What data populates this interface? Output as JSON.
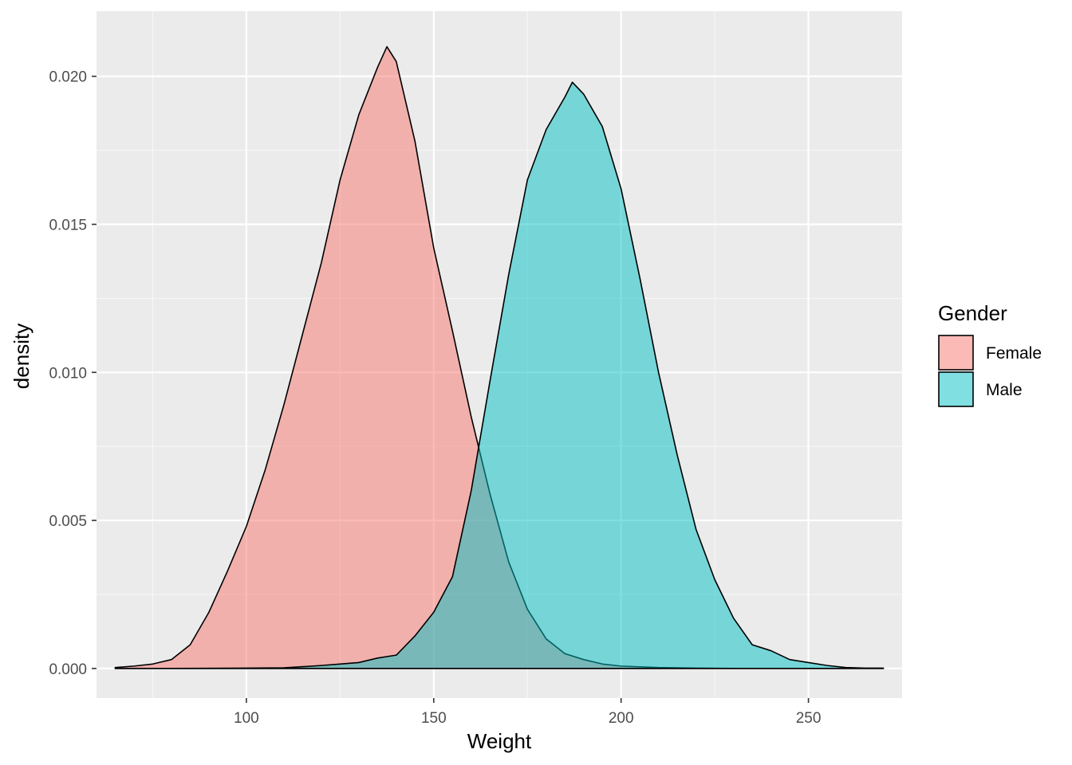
{
  "chart_data": {
    "type": "area",
    "subtype": "density",
    "title": "",
    "xlabel": "Weight",
    "ylabel": "density",
    "xlim": [
      60,
      275
    ],
    "ylim": [
      -0.001,
      0.0222
    ],
    "x_ticks": [
      100,
      150,
      200,
      250
    ],
    "x_tick_labels": [
      "100",
      "150",
      "200",
      "250"
    ],
    "y_ticks": [
      0.0,
      0.005,
      0.01,
      0.015,
      0.02
    ],
    "y_tick_labels": [
      "0.000",
      "0.005",
      "0.010",
      "0.015",
      "0.020"
    ],
    "grid": true,
    "legend": {
      "title": "Gender",
      "position": "right",
      "entries": [
        "Female",
        "Male"
      ]
    },
    "series": [
      {
        "name": "Female",
        "color": "#F8766D",
        "opacity": 0.5,
        "x": [
          65,
          70,
          75,
          80,
          85,
          90,
          95,
          100,
          105,
          110,
          115,
          120,
          125,
          130,
          135,
          137.5,
          140,
          145,
          150,
          155,
          160,
          165,
          170,
          175,
          180,
          185,
          190,
          195,
          200,
          210,
          220,
          230,
          240,
          250,
          260,
          270
        ],
        "values": [
          3e-05,
          8e-05,
          0.00015,
          0.0003,
          0.0008,
          0.0019,
          0.0033,
          0.0048,
          0.0067,
          0.0089,
          0.0113,
          0.0137,
          0.0165,
          0.0187,
          0.0203,
          0.021,
          0.0205,
          0.0178,
          0.0142,
          0.0114,
          0.0085,
          0.0059,
          0.0036,
          0.002,
          0.001,
          0.0005,
          0.0003,
          0.00015,
          8e-05,
          3e-05,
          1e-05,
          0.0,
          0.0,
          0.0,
          0.0,
          0.0
        ]
      },
      {
        "name": "Male",
        "color": "#00BFC4",
        "opacity": 0.5,
        "x": [
          65,
          80,
          100,
          110,
          120,
          125,
          130,
          135,
          140,
          145,
          150,
          155,
          160,
          165,
          170,
          175,
          180,
          185,
          187,
          190,
          195,
          200,
          205,
          210,
          215,
          220,
          225,
          230,
          235,
          240,
          245,
          250,
          255,
          260,
          265,
          270
        ],
        "values": [
          0.0,
          0.0,
          1e-05,
          2e-05,
          0.0001,
          0.00015,
          0.0002,
          0.00035,
          0.00045,
          0.0011,
          0.0019,
          0.0031,
          0.006,
          0.0097,
          0.0133,
          0.0165,
          0.0182,
          0.0193,
          0.0198,
          0.0194,
          0.0183,
          0.0162,
          0.0132,
          0.01,
          0.0072,
          0.0047,
          0.003,
          0.0017,
          0.0008,
          0.0006,
          0.0003,
          0.0002,
          0.0001,
          3e-05,
          1e-05,
          1e-05
        ]
      }
    ]
  }
}
